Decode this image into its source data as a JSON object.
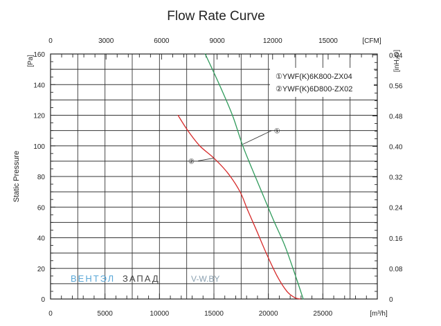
{
  "chart_data": {
    "type": "line",
    "title": "Flow Rate Curve",
    "ylabel": "Static Pressure",
    "x_primary": {
      "unit": "[m³/h]",
      "min": 0,
      "max": 30000,
      "ticks": [
        0,
        5000,
        10000,
        15000,
        20000,
        25000
      ]
    },
    "x_secondary": {
      "unit": "[CFM]",
      "min": 0,
      "max": 17657,
      "ticks": [
        0,
        3000,
        6000,
        9000,
        12000,
        15000
      ]
    },
    "y_primary": {
      "unit": "[Pa]",
      "min": 0,
      "max": 160,
      "ticks": [
        0,
        20,
        40,
        60,
        80,
        100,
        120,
        140,
        160
      ]
    },
    "y_secondary": {
      "unit": "[inH₂O]",
      "min": 0,
      "max": 0.6423,
      "ticks": [
        0,
        0.08,
        0.16,
        0.24,
        0.32,
        0.4,
        0.48,
        0.56,
        0.64
      ],
      "tick_labels": [
        "0",
        "0.08",
        "0.16",
        "0.24",
        "0.32",
        "0.40",
        "0.48",
        "0.56",
        "0.64"
      ]
    },
    "grid": true,
    "legend_position": "top-right",
    "series": [
      {
        "name": "①YWF(K)6K800-ZX04",
        "marker": "①",
        "color": "#2e9a5a",
        "x": [
          14200,
          15500,
          16700,
          17600,
          18500,
          19500,
          20500,
          21500,
          22400,
          23200
        ],
        "y": [
          160,
          140,
          120,
          101,
          85,
          68,
          51,
          35,
          17,
          0
        ]
      },
      {
        "name": "②YWF(K)6D800-ZX02",
        "marker": "②",
        "color": "#d62a2a",
        "x": [
          11700,
          12600,
          13700,
          15000,
          16300,
          17400,
          18100,
          18900,
          19800,
          20800,
          21700,
          22400,
          22900
        ],
        "y": [
          120,
          110,
          100,
          92,
          82,
          70,
          58,
          45,
          30,
          15,
          5,
          1,
          0
        ]
      }
    ]
  },
  "watermark": {
    "part1": "ВЕНТЭЛ",
    "part2": "ЗАПАД",
    "part3": "V-W.BY"
  }
}
